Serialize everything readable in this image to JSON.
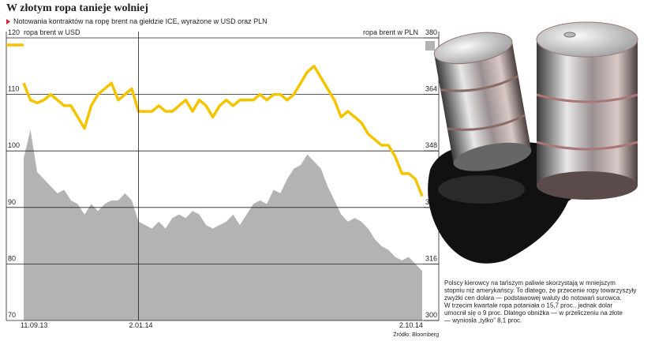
{
  "chart_data": {
    "type": "line",
    "title": "W złotym ropa tanieje wolniej",
    "subtitle": "Notowania kontraktów na ropę brent na giełdzie ICE, wyrażone w USD oraz PLN",
    "categories": [
      "11.09.13",
      null,
      null,
      null,
      null,
      null,
      null,
      null,
      null,
      null,
      null,
      null,
      null,
      null,
      null,
      null,
      null,
      "2.01.14",
      null,
      null,
      null,
      null,
      null,
      null,
      null,
      null,
      null,
      null,
      null,
      null,
      null,
      null,
      null,
      null,
      null,
      null,
      null,
      null,
      null,
      null,
      null,
      null,
      null,
      null,
      null,
      null,
      null,
      null,
      null,
      null,
      null,
      null,
      null,
      null,
      null,
      null,
      null,
      "2.10.14",
      null,
      null
    ],
    "series": [
      {
        "name": "ropa brent w USD",
        "color": "#f5c400",
        "axis": "y",
        "values": [
          112,
          109,
          108.5,
          109,
          110,
          109,
          108,
          108,
          106,
          104,
          108,
          110,
          111,
          112,
          109,
          110,
          111,
          107,
          107,
          107,
          108,
          107,
          107,
          108,
          109,
          107,
          109,
          108,
          106,
          108,
          109,
          108,
          109,
          109,
          109,
          110,
          109,
          110,
          110,
          109,
          110,
          112,
          114,
          115,
          113,
          111,
          109,
          106,
          107,
          106,
          105,
          103,
          102,
          101,
          101,
          99,
          96,
          96,
          95,
          92
        ]
      },
      {
        "name": "ropa brent w PLN",
        "color": "#b3b3b3",
        "axis": "y2",
        "values": [
          346,
          354,
          342,
          340,
          338,
          336,
          337,
          334,
          333,
          330,
          333,
          331,
          333,
          334,
          334,
          336,
          334,
          328,
          327,
          326,
          328,
          326,
          329,
          330,
          329,
          331,
          330,
          327,
          326,
          327,
          328,
          330,
          327,
          330,
          333,
          334,
          333,
          337,
          336,
          340,
          343,
          344,
          347,
          345,
          343,
          338,
          334,
          330,
          328,
          329,
          328,
          326,
          323,
          321,
          320,
          318,
          317,
          318,
          316,
          314
        ]
      }
    ],
    "ylim": [
      70,
      120
    ],
    "yticks": [
      70,
      80,
      90,
      100,
      110,
      120
    ],
    "y2lim": [
      300,
      380
    ],
    "y2ticks": [
      300,
      316,
      332,
      348,
      364,
      380
    ],
    "grid": true,
    "source": "Źródło: Bloomberg",
    "annotation": [
      "Polscy kierowcy na tańszym paliwie skorzystają w mniejszym",
      "stopniu niż amerykańscy. To dlatego, że przecenie ropy towarzyszyły",
      "zwyżki cen dolara — podstawowej waluty do notowań surowca.",
      "W trzecim kwartale ropa potaniała o 15,7 proc., jednak dolar",
      "umocnił się o 9 proc. Dlatego obniżka — w przeliczeniu na złote",
      "— wyniosła „tylko” 8,1 proc."
    ]
  }
}
